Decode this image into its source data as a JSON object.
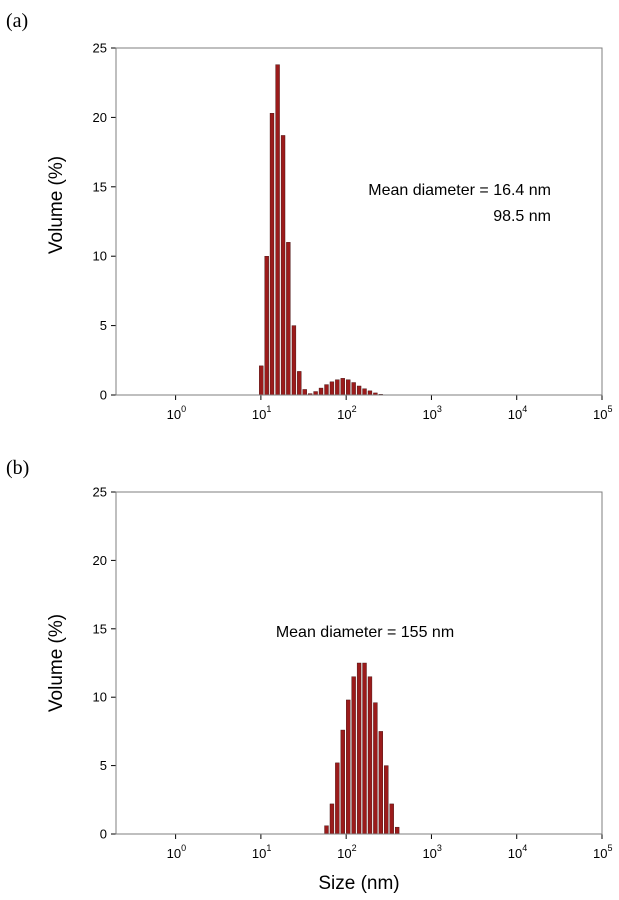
{
  "chart_data": [
    {
      "type": "bar",
      "panel_label": "(a)",
      "xlabel": "",
      "ylabel": "Volume (%)",
      "x_scale": "log",
      "xlim": [
        0.2,
        100000
      ],
      "ylim": [
        0,
        25
      ],
      "y_ticks": [
        0,
        5,
        10,
        15,
        20,
        25
      ],
      "x_ticks": [
        {
          "value": 1,
          "base": "10",
          "exp": "0"
        },
        {
          "value": 10,
          "base": "10",
          "exp": "1"
        },
        {
          "value": 100,
          "base": "10",
          "exp": "2"
        },
        {
          "value": 1000,
          "base": "10",
          "exp": "3"
        },
        {
          "value": 10000,
          "base": "10",
          "exp": "4"
        },
        {
          "value": 100000,
          "base": "10",
          "exp": "5"
        }
      ],
      "annotations": [
        "Mean diameter = 16.4 nm",
        "98.5 nm"
      ],
      "bar_color": "#9b1b1b",
      "series": [
        {
          "x": [
            10.1,
            11.7,
            13.5,
            15.7,
            18.2,
            21.0,
            24.4,
            28.2,
            32.7,
            37.8,
            43.8,
            50.7,
            58.8,
            68.1,
            78.8,
            91.3,
            105.7,
            122.4,
            141.8,
            164.2,
            190.1,
            220.2,
            255.0
          ],
          "values": [
            2.1,
            10.0,
            20.3,
            23.8,
            18.7,
            11.0,
            5.0,
            1.7,
            0.4,
            0.1,
            0.25,
            0.5,
            0.75,
            0.95,
            1.1,
            1.2,
            1.1,
            0.9,
            0.65,
            0.45,
            0.3,
            0.15,
            0.05
          ]
        }
      ]
    },
    {
      "type": "bar",
      "panel_label": "(b)",
      "xlabel": "Size (nm)",
      "ylabel": "Volume (%)",
      "x_scale": "log",
      "xlim": [
        0.2,
        100000
      ],
      "ylim": [
        0,
        25
      ],
      "y_ticks": [
        0,
        5,
        10,
        15,
        20,
        25
      ],
      "x_ticks": [
        {
          "value": 1,
          "base": "10",
          "exp": "0"
        },
        {
          "value": 10,
          "base": "10",
          "exp": "1"
        },
        {
          "value": 100,
          "base": "10",
          "exp": "2"
        },
        {
          "value": 1000,
          "base": "10",
          "exp": "3"
        },
        {
          "value": 10000,
          "base": "10",
          "exp": "4"
        },
        {
          "value": 100000,
          "base": "10",
          "exp": "5"
        }
      ],
      "annotations": [
        "Mean diameter = 155 nm"
      ],
      "bar_color": "#9b1b1b",
      "series": [
        {
          "x": [
            58.8,
            68.1,
            78.8,
            91.3,
            105.7,
            122.4,
            141.8,
            164.2,
            190.1,
            220.2,
            255.0,
            295.3,
            342.0,
            396.1
          ],
          "values": [
            0.6,
            2.2,
            5.2,
            7.6,
            9.8,
            11.5,
            12.5,
            12.5,
            11.5,
            9.6,
            7.5,
            5.0,
            2.2,
            0.5
          ]
        }
      ]
    }
  ]
}
